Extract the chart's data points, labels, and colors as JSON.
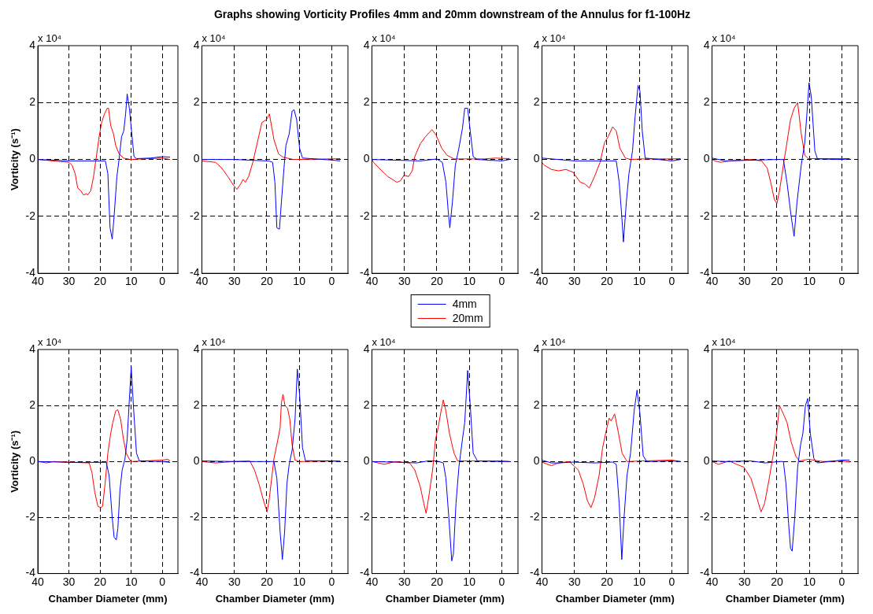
{
  "chart_data": [
    {
      "type": "other",
      "title": "Graphs showing Vorticity Profiles 4mm and 20mm downstream of the Annulus for f1-100Hz"
    },
    {
      "type": "line",
      "ylabel": "Vorticity (s⁻¹)",
      "annotations": [
        "x 10⁴"
      ],
      "xlim": [
        40,
        -5
      ],
      "xticks": [
        40,
        30,
        20,
        10,
        0
      ],
      "ylim": [
        -4,
        4
      ],
      "yticks": [
        -4,
        -2,
        0,
        2,
        4
      ],
      "grid": true,
      "series": [
        {
          "color": "#0000ff",
          "x": [
            40,
            30,
            21,
            18.3,
            17.5,
            16.8,
            16.1,
            15.5,
            14.6,
            13.9,
            13.1,
            12.4,
            11.8,
            11.3,
            10.6,
            9.8,
            9.1,
            8.3,
            3.8,
            0,
            -2.5
          ],
          "values": [
            0,
            -0.05,
            -0.05,
            -0.05,
            -0.5,
            -2.4,
            -2.8,
            -2,
            -0.6,
            0,
            0.8,
            1,
            1.6,
            2.3,
            1.8,
            0.9,
            0.1,
            0.03,
            0.05,
            0.1,
            0.08
          ]
        },
        {
          "color": "#ff0000",
          "x": [
            40,
            30,
            29,
            28,
            27.2,
            26.2,
            25.3,
            24.4,
            24,
            23,
            22.1,
            21.2,
            20.3,
            19.5,
            18.6,
            17.7,
            17.3,
            16.6,
            15.7,
            15,
            13.9,
            12.5,
            10.2,
            0,
            -2.5
          ],
          "values": [
            0,
            -0.1,
            -0.2,
            -0.5,
            -1,
            -1.1,
            -1.25,
            -1.2,
            -1.25,
            -1.1,
            -0.6,
            0.1,
            0.8,
            1.3,
            1.6,
            1.8,
            1.8,
            1.2,
            0.9,
            0.5,
            0.2,
            0.05,
            0,
            0.05,
            0
          ]
        }
      ]
    },
    {
      "type": "line",
      "annotations": [
        "x 10⁴"
      ],
      "xlim": [
        40,
        -5
      ],
      "xticks": [
        40,
        30,
        20,
        10,
        0
      ],
      "ylim": [
        -4,
        4
      ],
      "yticks": [
        -4,
        -2,
        0,
        2,
        4
      ],
      "grid": true,
      "series": [
        {
          "color": "#0000ff",
          "x": [
            40,
            30,
            20,
            19.4,
            18.2,
            17.5,
            16.9,
            16.1,
            15.5,
            14.7,
            14.1,
            13.1,
            12.2,
            11.6,
            10.8,
            9.9,
            9,
            0,
            -2.6
          ],
          "values": [
            0,
            0,
            -0.05,
            -0.05,
            -0.1,
            -0.8,
            -2.4,
            -2.45,
            -1.5,
            -0.3,
            0.5,
            0.9,
            1.7,
            1.75,
            1.4,
            0.4,
            0.05,
            -0.02,
            -0.05
          ]
        },
        {
          "color": "#ff0000",
          "x": [
            40,
            35.8,
            33.9,
            32,
            30.3,
            29.2,
            28,
            27.3,
            26.6,
            25.6,
            24.3,
            22.9,
            21.5,
            20.1,
            19.2,
            17.8,
            16.4,
            15,
            11.8,
            0,
            -2.6
          ],
          "values": [
            -0.05,
            -0.1,
            -0.3,
            -0.6,
            -0.9,
            -1.05,
            -0.85,
            -0.7,
            -0.8,
            -0.6,
            -0.1,
            0.6,
            1.3,
            1.4,
            1.6,
            0.7,
            0.2,
            0.08,
            0,
            0.02,
            0.03
          ]
        }
      ]
    },
    {
      "type": "line",
      "annotations": [
        "x 10⁴"
      ],
      "xlim": [
        40,
        -5
      ],
      "xticks": [
        40,
        30,
        20,
        10,
        0
      ],
      "ylim": [
        -4,
        4
      ],
      "yticks": [
        -4,
        -2,
        0,
        2,
        4
      ],
      "grid": true,
      "legend": "bottom",
      "series": [
        {
          "name": "4mm",
          "color": "#0000ff",
          "x": [
            40,
            25.1,
            20,
            18.3,
            17.2,
            16.5,
            16,
            15.2,
            14.3,
            13.2,
            12.1,
            11.4,
            10.5,
            9.7,
            8.8,
            7.5,
            0,
            -2.4
          ],
          "values": [
            0,
            -0.05,
            0.02,
            -0.1,
            -0.8,
            -1.8,
            -2.4,
            -1.5,
            -0.2,
            0.4,
            1.1,
            1.8,
            1.8,
            1,
            0.1,
            0,
            -0.05,
            0
          ]
        },
        {
          "name": "20mm",
          "color": "#ff0000",
          "x": [
            40,
            39.5,
            37.8,
            35.1,
            32.3,
            31.2,
            30.1,
            28.7,
            27.6,
            26.8,
            25.1,
            23.5,
            21.5,
            20.2,
            18.5,
            16.9,
            14.7,
            5.3,
            2,
            -2.4
          ],
          "values": [
            0,
            -0.1,
            -0.3,
            -0.6,
            -0.8,
            -0.75,
            -0.55,
            -0.6,
            -0.4,
            0.1,
            0.55,
            0.8,
            1.05,
            0.85,
            0.4,
            0.15,
            0.02,
            0.02,
            0.05,
            0.03
          ]
        }
      ]
    },
    {
      "type": "line",
      "annotations": [
        "x 10⁴"
      ],
      "xlim": [
        40,
        -5
      ],
      "xticks": [
        40,
        30,
        20,
        10,
        0
      ],
      "ylim": [
        -4,
        4
      ],
      "yticks": [
        -4,
        -2,
        0,
        2,
        4
      ],
      "grid": true,
      "series": [
        {
          "color": "#0000ff",
          "x": [
            40,
            30,
            19.3,
            17.1,
            16.2,
            15.4,
            14.9,
            14,
            13.2,
            12.1,
            11.3,
            10.4,
            9.8,
            9.1,
            8.2,
            0,
            -2.7
          ],
          "values": [
            0.05,
            -0.05,
            -0.05,
            -0.05,
            -0.8,
            -2,
            -2.9,
            -1.5,
            -0.5,
            0.3,
            1.5,
            2.6,
            2.4,
            1,
            0.05,
            -0.05,
            0
          ]
        },
        {
          "color": "#ff0000",
          "x": [
            40,
            39.3,
            37.1,
            34.9,
            32.6,
            30.4,
            28.2,
            26.9,
            25.4,
            23.8,
            22.1,
            20.7,
            19.6,
            18.2,
            17.1,
            16,
            14.3,
            12.7,
            9.3,
            0,
            -2.7
          ],
          "values": [
            -0.1,
            -0.2,
            -0.35,
            -0.4,
            -0.35,
            -0.45,
            -0.8,
            -0.85,
            -1,
            -0.6,
            -0.1,
            0.6,
            0.8,
            1.15,
            1,
            0.4,
            0.05,
            0,
            0.02,
            0.02,
            0.03
          ]
        }
      ]
    },
    {
      "type": "line",
      "annotations": [
        "x 10⁴"
      ],
      "xlim": [
        40,
        -5
      ],
      "xticks": [
        40,
        30,
        20,
        10,
        0
      ],
      "ylim": [
        -4,
        4
      ],
      "yticks": [
        -4,
        -2,
        0,
        2,
        4
      ],
      "grid": true,
      "series": [
        {
          "color": "#0000ff",
          "x": [
            40,
            35.8,
            19.9,
            18,
            16.9,
            15.6,
            14.7,
            13.8,
            12.5,
            11.4,
            10.5,
            10.1,
            9.4,
            8.3,
            7.5,
            0,
            -2.4
          ],
          "values": [
            0.05,
            -0.05,
            0,
            0,
            -0.8,
            -2,
            -2.7,
            -1.5,
            -0.2,
            0.6,
            2,
            2.7,
            2.2,
            0.3,
            0.02,
            0,
            0.02
          ]
        },
        {
          "color": "#ff0000",
          "x": [
            40,
            39.1,
            37.4,
            34.7,
            28,
            24.7,
            23,
            21.9,
            20.8,
            20,
            19.2,
            18,
            16.9,
            15.8,
            14.7,
            13.6,
            12.5,
            11.4,
            10.3,
            0,
            -2.4
          ],
          "values": [
            0,
            -0.05,
            -0.1,
            -0.05,
            0,
            -0.05,
            -0.3,
            -0.8,
            -1.4,
            -1.55,
            -1.1,
            -0.2,
            0.6,
            1.4,
            1.8,
            2,
            0.9,
            0.15,
            0.03,
            0.03,
            0.03
          ]
        }
      ]
    },
    {
      "type": "line",
      "xlabel": "Chamber Diameter (mm)",
      "ylabel": "Vorticity (s⁻¹)",
      "annotations": [
        "x 10⁴"
      ],
      "xlim": [
        40,
        -5
      ],
      "xticks": [
        40,
        30,
        20,
        10,
        0
      ],
      "ylim": [
        -4,
        4
      ],
      "yticks": [
        -4,
        -2,
        0,
        2,
        4
      ],
      "grid": true,
      "series": [
        {
          "color": "#0000ff",
          "x": [
            40,
            30,
            20,
            18,
            17.1,
            16.1,
            15.5,
            14.8,
            14.3,
            13.6,
            12.9,
            12,
            11.3,
            10.6,
            10,
            9.3,
            8.3,
            7.4,
            0,
            -2.5
          ],
          "values": [
            0,
            -0.03,
            -0.03,
            -0.03,
            -0.5,
            -2,
            -2.7,
            -2.8,
            -2.4,
            -1,
            -0.3,
            0.1,
            0.8,
            2.2,
            3.4,
            2,
            0.3,
            0.02,
            0,
            -0.03
          ]
        },
        {
          "color": "#ff0000",
          "x": [
            40,
            37.2,
            35,
            23.5,
            22.6,
            21.7,
            20.7,
            19.8,
            19.2,
            18.4,
            17.5,
            16.6,
            15.9,
            15,
            14.3,
            13.4,
            12.5,
            11.6,
            10.2,
            0,
            -1.7,
            -2.5
          ],
          "values": [
            0,
            -0.05,
            0,
            -0.05,
            -0.4,
            -1.1,
            -1.6,
            -1.65,
            -1.6,
            -0.8,
            0.3,
            1,
            1.4,
            1.8,
            1.85,
            1.5,
            0.8,
            0.3,
            0,
            0.05,
            0.08,
            0.02
          ]
        }
      ]
    },
    {
      "type": "line",
      "xlabel": "Chamber Diameter (mm)",
      "annotations": [
        "x 10⁴"
      ],
      "xlim": [
        40,
        -5
      ],
      "xticks": [
        40,
        30,
        20,
        10,
        0
      ],
      "ylim": [
        -4,
        4
      ],
      "yticks": [
        -4,
        -2,
        0,
        2,
        4
      ],
      "grid": true,
      "series": [
        {
          "color": "#0000ff",
          "x": [
            40,
            30.1,
            20,
            17.8,
            16.9,
            15.9,
            15.2,
            14.5,
            13.8,
            13.1,
            12.2,
            11.3,
            10.6,
            9.9,
            9,
            8.1,
            0,
            -2.6
          ],
          "values": [
            0.02,
            0,
            0,
            0,
            -0.6,
            -2.5,
            -3.5,
            -2.5,
            -0.8,
            -0.1,
            0.4,
            1.5,
            3.3,
            2.4,
            0.5,
            0.03,
            0.02,
            0
          ]
        },
        {
          "color": "#ff0000",
          "x": [
            40,
            35.8,
            30.3,
            25.2,
            23.8,
            22.4,
            21,
            19.9,
            19.2,
            17.8,
            16.9,
            15.9,
            15.5,
            15,
            14.4,
            13.6,
            12.9,
            12.2,
            11.3,
            9.9,
            0,
            -2.6
          ],
          "values": [
            0,
            -0.05,
            0,
            0.02,
            -0.3,
            -0.8,
            -1.4,
            -1.8,
            -1.3,
            0.1,
            0.6,
            1.2,
            2.1,
            2.4,
            2,
            1.9,
            1.5,
            0.6,
            0.05,
            0,
            0.02,
            0.02
          ]
        }
      ]
    },
    {
      "type": "line",
      "xlabel": "Chamber Diameter (mm)",
      "annotations": [
        "x 10⁴"
      ],
      "xlim": [
        40,
        -5
      ],
      "xticks": [
        40,
        30,
        20,
        10,
        0
      ],
      "ylim": [
        -4,
        4
      ],
      "yticks": [
        -4,
        -2,
        0,
        2,
        4
      ],
      "grid": true,
      "series": [
        {
          "color": "#0000ff",
          "x": [
            40,
            30.6,
            26.2,
            22.9,
            20,
            18,
            17.2,
            16.3,
            15.4,
            14.9,
            14.1,
            13.2,
            12.1,
            11.4,
            10.5,
            9.7,
            8.8,
            7.5,
            0,
            -2.4
          ],
          "values": [
            0,
            -0.03,
            -0.05,
            0.02,
            0.02,
            -0.05,
            -0.6,
            -2,
            -3.55,
            -3.3,
            -1.5,
            -0.2,
            0.8,
            1.4,
            3.25,
            2,
            0.3,
            0.02,
            0,
            0
          ]
        },
        {
          "color": "#ff0000",
          "x": [
            40,
            36.2,
            32.9,
            28.4,
            26.8,
            25.1,
            24,
            23.3,
            22.4,
            21.3,
            20.4,
            19.6,
            18.7,
            18,
            17.2,
            16.1,
            14.7,
            13.6,
            9.7,
            0,
            -2.4
          ],
          "values": [
            0,
            -0.1,
            0,
            -0.05,
            -0.3,
            -0.9,
            -1.5,
            -1.85,
            -1.2,
            -0.3,
            0.8,
            1.2,
            1.8,
            2.2,
            1.8,
            1,
            0.3,
            0.02,
            0.02,
            0.02,
            0
          ]
        }
      ]
    },
    {
      "type": "line",
      "xlabel": "Chamber Diameter (mm)",
      "annotations": [
        "x 10⁴"
      ],
      "xlim": [
        40,
        -5
      ],
      "xticks": [
        40,
        30,
        20,
        10,
        0
      ],
      "ylim": [
        -4,
        4
      ],
      "yticks": [
        -4,
        -2,
        0,
        2,
        4
      ],
      "grid": true,
      "series": [
        {
          "color": "#0000ff",
          "x": [
            40,
            37.1,
            34.9,
            30.4,
            23.8,
            18.2,
            17.1,
            16.2,
            15.4,
            14.7,
            13.8,
            12.7,
            11.6,
            10.7,
            9.8,
            8.8,
            7.7,
            0,
            -2.7
          ],
          "values": [
            0.05,
            -0.05,
            -0.05,
            -0.02,
            -0.05,
            -0.02,
            -0.1,
            -1.5,
            -3.5,
            -2,
            -0.5,
            0.3,
            1.8,
            2.55,
            1.7,
            0.2,
            0,
            0.02,
            0
          ]
        },
        {
          "color": "#ff0000",
          "x": [
            40,
            37.1,
            34.9,
            31.6,
            28.8,
            27.3,
            26,
            24.9,
            23.8,
            22.4,
            21.3,
            20.2,
            19.3,
            18.7,
            17.6,
            16.4,
            15.3,
            13.8,
            9.3,
            0,
            -2.7
          ],
          "values": [
            -0.02,
            -0.15,
            -0.05,
            0,
            -0.3,
            -0.8,
            -1.4,
            -1.65,
            -1.3,
            -0.5,
            0.5,
            1.1,
            1.55,
            1.45,
            1.7,
            1,
            0.3,
            0,
            0.02,
            0.05,
            0
          ]
        }
      ]
    },
    {
      "type": "line",
      "xlabel": "Chamber Diameter (mm)",
      "annotations": [
        "x 10⁴"
      ],
      "xlim": [
        40,
        -5
      ],
      "xticks": [
        40,
        30,
        20,
        10,
        0
      ],
      "ylim": [
        -4,
        4
      ],
      "yticks": [
        -4,
        -2,
        0,
        2,
        4
      ],
      "grid": true,
      "series": [
        {
          "color": "#0000ff",
          "x": [
            40,
            35.8,
            28,
            23.6,
            19.2,
            18,
            17.2,
            16.4,
            15.8,
            15.3,
            14.5,
            13.6,
            12.7,
            12,
            11.2,
            10.5,
            9.7,
            8.6,
            7.5,
            0,
            -2.4
          ],
          "values": [
            0.02,
            0,
            0.02,
            -0.05,
            0,
            0,
            -0.8,
            -2.2,
            -3.1,
            -3.2,
            -2,
            -0.2,
            0.6,
            1,
            2,
            2.25,
            1,
            0.1,
            -0.05,
            0.05,
            0.05
          ]
        },
        {
          "color": "#ff0000",
          "x": [
            40,
            38,
            34.7,
            32.4,
            30.2,
            28,
            26.4,
            24.9,
            23.8,
            22.5,
            21.2,
            20,
            19.2,
            18,
            16.9,
            15.6,
            14.2,
            13.1,
            10.3,
            5.9,
            0,
            -2.4
          ],
          "values": [
            0,
            -0.1,
            0.02,
            -0.1,
            -0.2,
            -0.6,
            -1.2,
            -1.8,
            -1.5,
            -0.7,
            0.2,
            1.1,
            2,
            1.7,
            1.4,
            0.7,
            0.2,
            0.02,
            0.08,
            0,
            0.02,
            -0.02
          ]
        }
      ]
    }
  ]
}
